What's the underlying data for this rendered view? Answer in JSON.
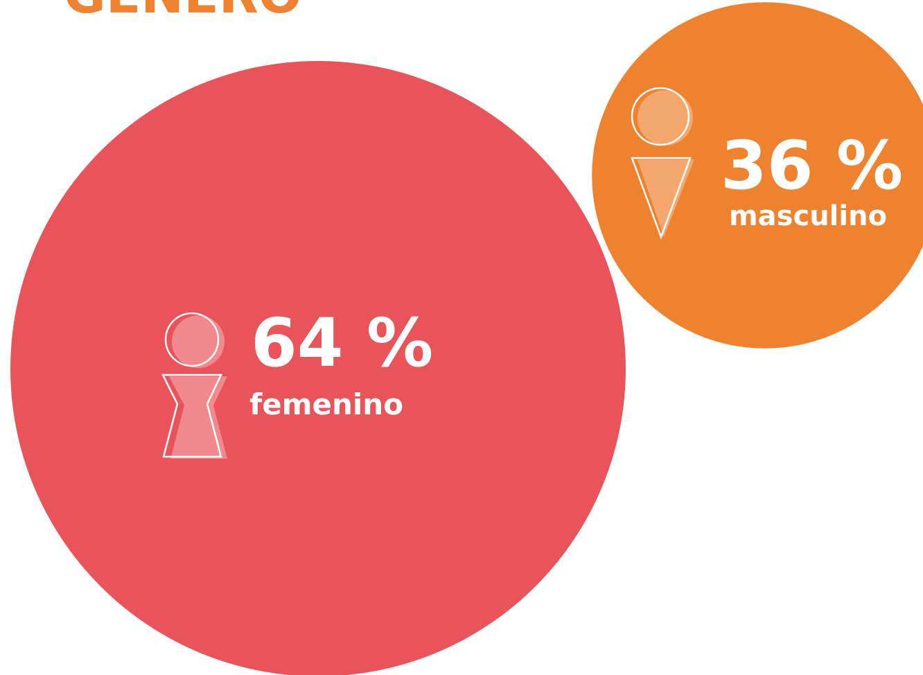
{
  "chart_data": {
    "type": "bubble",
    "title": "GÉNERO",
    "categories": [
      "femenino",
      "masculino"
    ],
    "values": [
      64,
      36
    ],
    "value_labels": [
      "64 %",
      "36 %"
    ],
    "colors": [
      "#e8545a",
      "#ef822e"
    ]
  }
}
